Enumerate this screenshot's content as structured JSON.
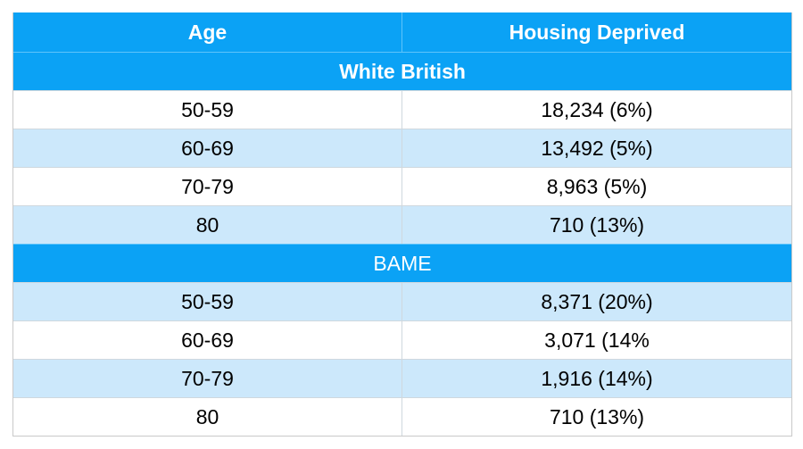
{
  "table": {
    "headers": {
      "age": "Age",
      "value": "Housing Deprived"
    },
    "groups": [
      {
        "title": "White British",
        "rows": [
          {
            "age": "50-59",
            "value": "18,234 (6%)"
          },
          {
            "age": "60-69",
            "value": "13,492 (5%)"
          },
          {
            "age": "70-79",
            "value": "8,963 (5%)"
          },
          {
            "age": "80",
            "value": "710 (13%)"
          }
        ]
      },
      {
        "title": "BAME",
        "rows": [
          {
            "age": "50-59",
            "value": "8,371 (20%)"
          },
          {
            "age": "60-69",
            "value": "3,071 (14%"
          },
          {
            "age": "70-79",
            "value": "1,916 (14%)"
          },
          {
            "age": "80",
            "value": "710 (13%)"
          }
        ]
      }
    ],
    "colors": {
      "header_bg": "#0ba2f5",
      "row_alt_bg": "#cce8fb",
      "row_bg": "#ffffff"
    }
  }
}
